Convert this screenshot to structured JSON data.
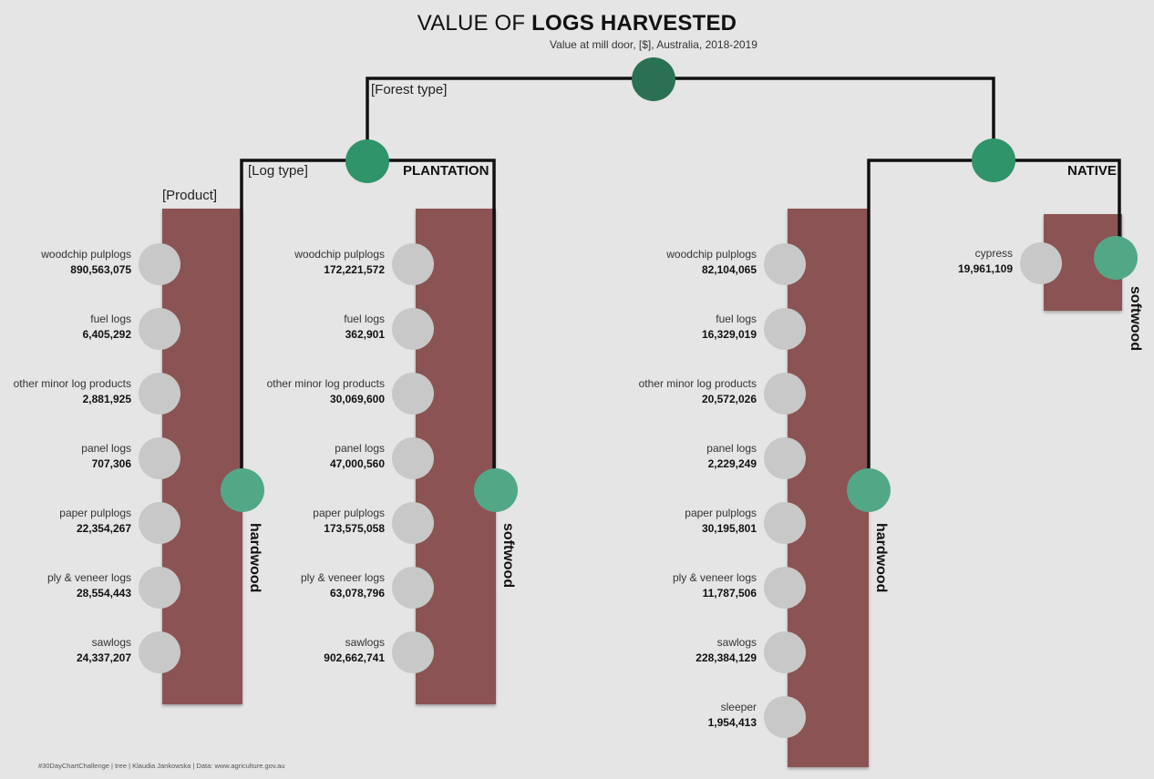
{
  "title": {
    "light": "VALUE OF ",
    "bold": "LOGS HARVESTED"
  },
  "subtitle": "Value at mill door, [$], Australia, 2018-2019",
  "level_labels": {
    "forest_type": "[Forest type]",
    "log_type": "[Log type]",
    "product": "[Product]"
  },
  "colors": {
    "background": "#e5e5e5",
    "root_node": "#2a7153",
    "forest_node": "#2f9468",
    "logtype_node": "#52a886",
    "product_node": "#c8c8c8",
    "bar": "#8b5252",
    "line": "#111111"
  },
  "forests": [
    {
      "name": "PLANTATION",
      "log_types": [
        {
          "name": "hardwood",
          "products": [
            {
              "name": "woodchip pulplogs",
              "value": "890,563,075"
            },
            {
              "name": "fuel logs",
              "value": "6,405,292"
            },
            {
              "name": "other minor log products",
              "value": "2,881,925"
            },
            {
              "name": "panel logs",
              "value": "707,306"
            },
            {
              "name": "paper pulplogs",
              "value": "22,354,267"
            },
            {
              "name": "ply & veneer logs",
              "value": "28,554,443"
            },
            {
              "name": "sawlogs",
              "value": "24,337,207"
            }
          ]
        },
        {
          "name": "softwood",
          "products": [
            {
              "name": "woodchip pulplogs",
              "value": "172,221,572"
            },
            {
              "name": "fuel logs",
              "value": "362,901"
            },
            {
              "name": "other minor log products",
              "value": "30,069,600"
            },
            {
              "name": "panel logs",
              "value": "47,000,560"
            },
            {
              "name": "paper pulplogs",
              "value": "173,575,058"
            },
            {
              "name": "ply & veneer logs",
              "value": "63,078,796"
            },
            {
              "name": "sawlogs",
              "value": "902,662,741"
            }
          ]
        }
      ]
    },
    {
      "name": "NATIVE",
      "log_types": [
        {
          "name": "hardwood",
          "products": [
            {
              "name": "woodchip pulplogs",
              "value": "82,104,065"
            },
            {
              "name": "fuel logs",
              "value": "16,329,019"
            },
            {
              "name": "other minor log products",
              "value": "20,572,026"
            },
            {
              "name": "panel logs",
              "value": "2,229,249"
            },
            {
              "name": "paper pulplogs",
              "value": "30,195,801"
            },
            {
              "name": "ply & veneer logs",
              "value": "11,787,506"
            },
            {
              "name": "sawlogs",
              "value": "228,384,129"
            },
            {
              "name": "sleeper",
              "value": "1,954,413"
            }
          ]
        },
        {
          "name": "softwood",
          "products": [
            {
              "name": "cypress",
              "value": "19,961,109"
            }
          ]
        }
      ]
    }
  ],
  "footer": "#30DayChartChallenge  |  tree  |  Klaudia Jankowska  |  Data: www.agriculture.gov.au"
}
